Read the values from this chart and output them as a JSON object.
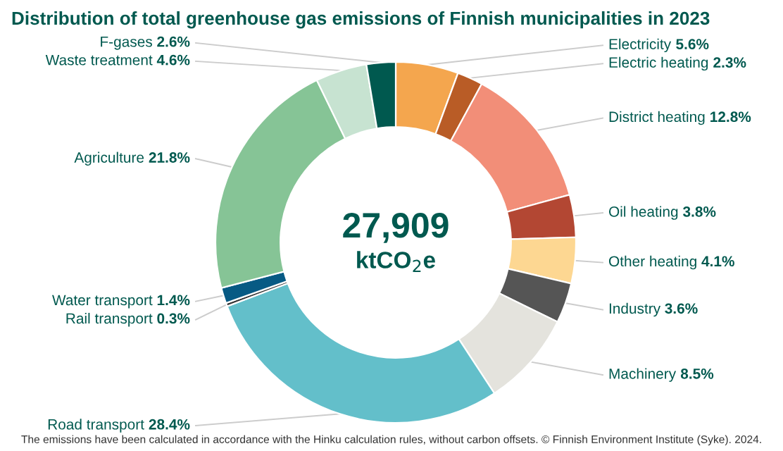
{
  "chart_data": {
    "type": "donut",
    "title": "Distribution of total greenhouse gas emissions of Finnish municipalities in 2023",
    "categories": [
      "Electricity",
      "Electric heating",
      "District heating",
      "Oil heating",
      "Other heating",
      "Industry",
      "Machinery",
      "Road transport",
      "Rail transport",
      "Water transport",
      "Agriculture",
      "Waste treatment",
      "F-gases"
    ],
    "values": [
      5.6,
      2.3,
      12.8,
      3.8,
      4.1,
      3.6,
      8.5,
      28.4,
      0.3,
      1.4,
      21.8,
      4.6,
      2.6
    ],
    "value_labels": [
      "5.6%",
      "2.3%",
      "12.8%",
      "3.8%",
      "4.1%",
      "3.6%",
      "8.5%",
      "28.4%",
      "0.3%",
      "1.4%",
      "21.8%",
      "4.6%",
      "2.6%"
    ],
    "colors": [
      "#f4a64e",
      "#b95c26",
      "#f28e78",
      "#b34733",
      "#fdd792",
      "#555555",
      "#e4e3dd",
      "#63bfca",
      "#333333",
      "#075a84",
      "#86c496",
      "#c7e3d1",
      "#00594f"
    ],
    "annotations": [
      "27,909",
      "ktCO$_{2}$e",
      "The emissions have been calculated in accordance with the Hinku calculation rules, without carbon offsets. © Finnish Environment Institute (Syke). 2024."
    ],
    "legend": false
  }
}
